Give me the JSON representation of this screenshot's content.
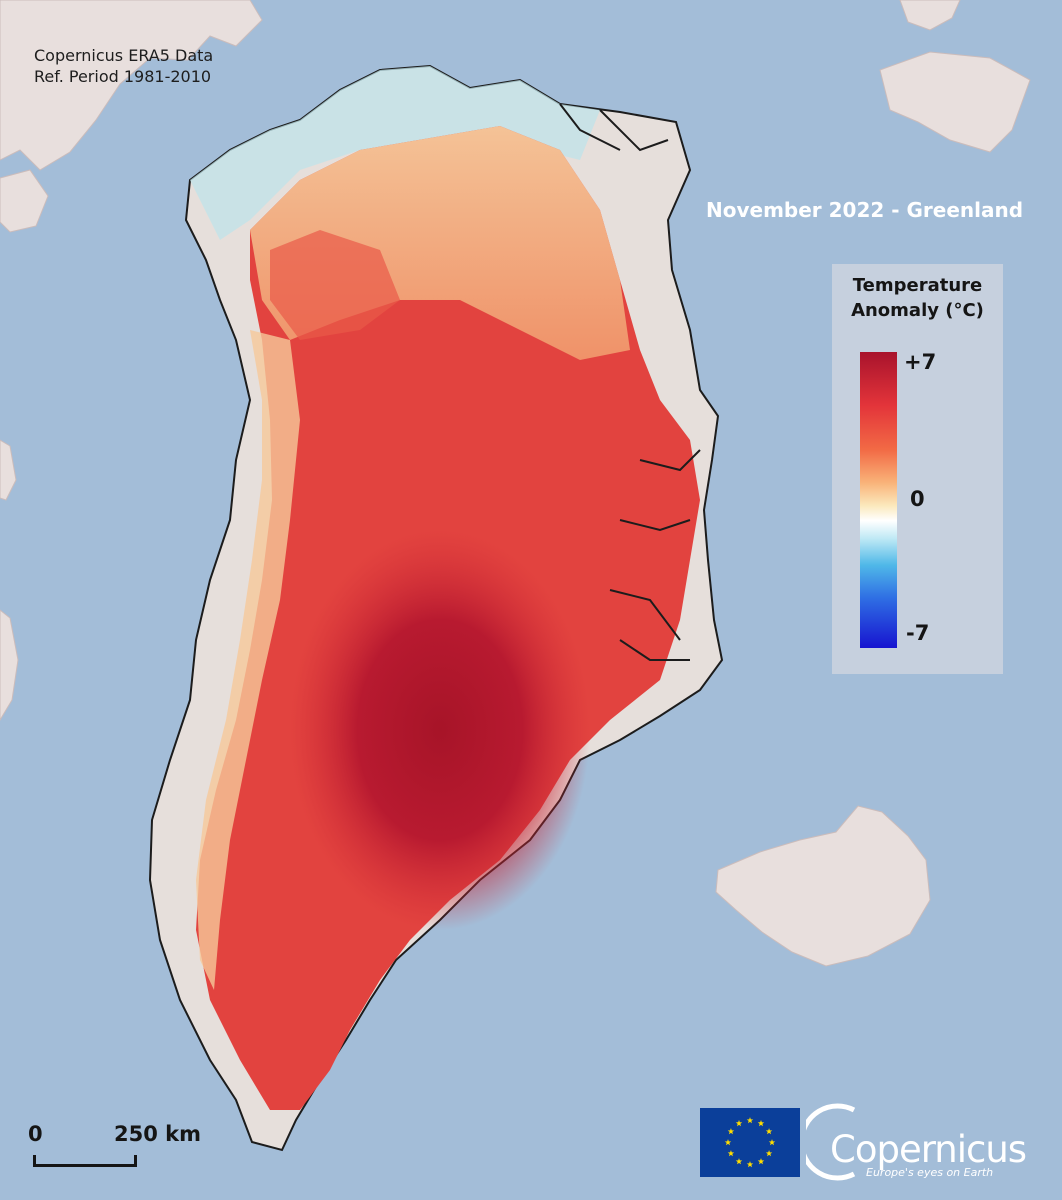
{
  "map": {
    "title": "November 2022 - Greenland",
    "source": {
      "line1": "Copernicus ERA5 Data",
      "line2": "Ref. Period 1981-2010"
    },
    "legend": {
      "title_line1": "Temperature",
      "title_line2": "Anomaly (°C)",
      "max_label": "+7",
      "mid_label": "0",
      "min_label": "-7",
      "colors": [
        "#a8132c",
        "#e3343a",
        "#f9b278",
        "#ffffff",
        "#4fb8e8",
        "#1714d0"
      ]
    },
    "scale_bar": {
      "start_label": "0",
      "end_label": "250 km"
    },
    "logos": {
      "eu_flag": "eu-flag",
      "copernicus_wordmark": "Copernicus",
      "copernicus_tagline": "Europe's eyes on Earth"
    },
    "colors": {
      "ocean": "#a3bdd8",
      "land": "#e9e1df",
      "legend_panel": "#c6d0de",
      "title": "#ffffff"
    }
  }
}
